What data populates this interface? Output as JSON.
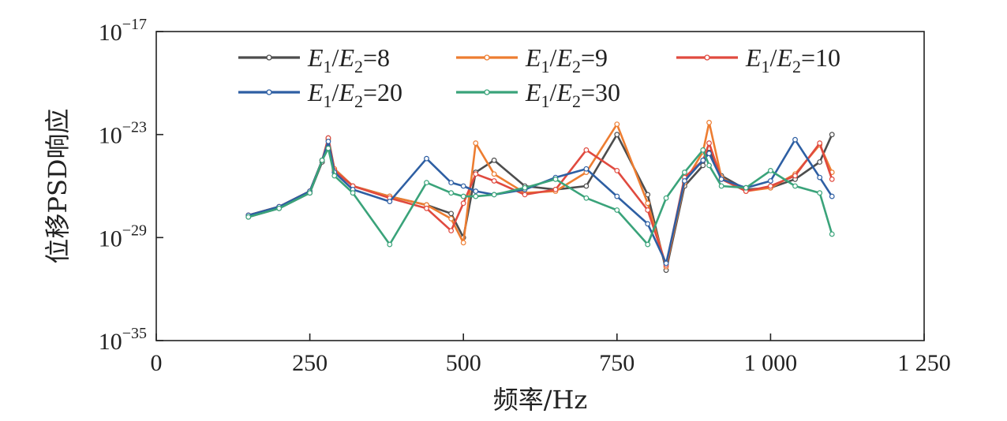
{
  "chart_data": {
    "type": "line",
    "title": "",
    "xlabel": "频率/Hz",
    "ylabel": "位移PSD响应",
    "xlim": [
      0,
      1250
    ],
    "ylim": [
      -35,
      -17
    ],
    "y_scale": "log10",
    "x_ticks": [
      0,
      250,
      500,
      750,
      1000,
      1250
    ],
    "x_tick_labels": [
      "0",
      "250",
      "500",
      "750",
      "1 000",
      "1 250"
    ],
    "y_ticks": [
      -17,
      -23,
      -29,
      -35
    ],
    "y_tick_labels": [
      {
        "base": "10",
        "exp": "−17"
      },
      {
        "base": "10",
        "exp": "−23"
      },
      {
        "base": "10",
        "exp": "−29"
      },
      {
        "base": "10",
        "exp": "−35"
      }
    ],
    "grid": false,
    "legend_position": "top",
    "x": [
      150,
      200,
      250,
      270,
      280,
      290,
      320,
      380,
      440,
      480,
      500,
      520,
      550,
      600,
      650,
      700,
      750,
      800,
      830,
      860,
      890,
      900,
      920,
      960,
      1000,
      1040,
      1080,
      1100
    ],
    "series": [
      {
        "name": "E1/E2=8",
        "legend": {
          "n1": "1",
          "n2": "2",
          "value": "=8"
        },
        "color": "#4d4d4d",
        "values": [
          -27.8,
          -27.3,
          -26.4,
          -24.6,
          -23.2,
          -25.0,
          -26.0,
          -26.6,
          -27.1,
          -27.6,
          -29.0,
          -25.2,
          -24.5,
          -26.0,
          -26.2,
          -26.0,
          -23.0,
          -26.5,
          -30.9,
          -26.0,
          -24.8,
          -23.8,
          -25.4,
          -26.2,
          -26.1,
          -25.6,
          -24.6,
          -23.0
        ]
      },
      {
        "name": "E1/E2=9",
        "legend": {
          "n1": "1",
          "n2": "2",
          "value": "=9"
        },
        "color": "#ed7d31",
        "values": [
          -27.7,
          -27.2,
          -26.3,
          -24.5,
          -23.3,
          -25.0,
          -26.0,
          -26.6,
          -27.1,
          -27.9,
          -29.3,
          -23.5,
          -25.3,
          -26.4,
          -26.3,
          -25.2,
          -22.4,
          -27.0,
          -30.7,
          -25.8,
          -24.0,
          -22.3,
          -25.5,
          -26.3,
          -26.1,
          -25.3,
          -23.6,
          -25.2
        ]
      },
      {
        "name": "E1/E2=10",
        "legend": {
          "n1": "1",
          "n2": "2",
          "value": "=10"
        },
        "color": "#e04a3f",
        "values": [
          -27.7,
          -27.2,
          -26.3,
          -24.5,
          -23.2,
          -25.1,
          -26.0,
          -26.7,
          -27.3,
          -28.6,
          -27.0,
          -25.3,
          -25.7,
          -26.5,
          -26.2,
          -23.9,
          -25.1,
          -27.4,
          -30.6,
          -25.5,
          -24.5,
          -23.5,
          -25.6,
          -26.3,
          -26.0,
          -25.4,
          -23.5,
          -25.6
        ]
      },
      {
        "name": "E1/E2=20",
        "legend": {
          "n1": "1",
          "n2": "2",
          "value": "=20"
        },
        "color": "#2e5fa3",
        "values": [
          -27.7,
          -27.2,
          -26.3,
          -24.5,
          -23.4,
          -25.2,
          -26.2,
          -26.9,
          -24.4,
          -25.8,
          -26.0,
          -26.3,
          -26.5,
          -26.2,
          -25.5,
          -25.0,
          -26.6,
          -28.2,
          -30.5,
          -25.7,
          -24.5,
          -24.1,
          -25.6,
          -26.1,
          -25.7,
          -23.3,
          -25.5,
          -26.6
        ]
      },
      {
        "name": "E1/E2=30",
        "legend": {
          "n1": "1",
          "n2": "2",
          "value": "=30"
        },
        "color": "#3aa37a",
        "values": [
          -27.8,
          -27.3,
          -26.4,
          -24.5,
          -23.8,
          -25.4,
          -26.4,
          -29.4,
          -25.8,
          -26.4,
          -26.6,
          -26.6,
          -26.5,
          -26.1,
          -25.6,
          -26.7,
          -27.4,
          -29.4,
          -26.7,
          -25.2,
          -23.9,
          -24.8,
          -26.0,
          -26.1,
          -25.1,
          -26.0,
          -26.4,
          -28.8
        ]
      }
    ]
  }
}
